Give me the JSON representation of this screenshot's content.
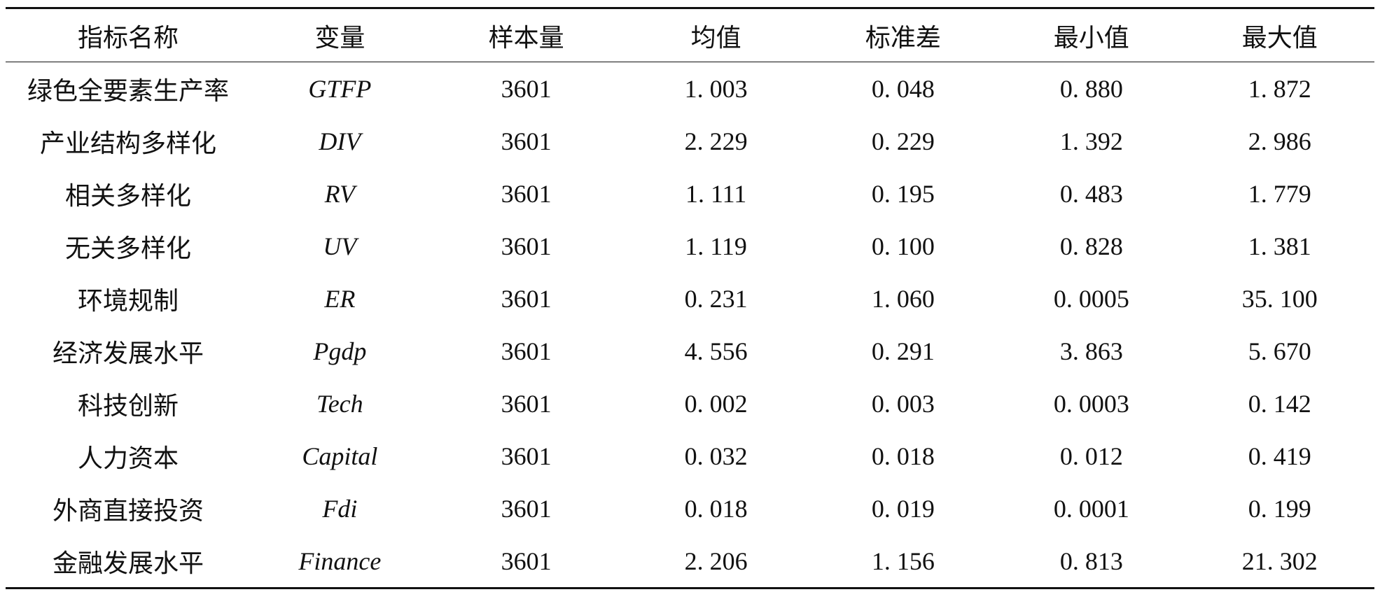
{
  "table": {
    "headers": [
      "指标名称",
      "变量",
      "样本量",
      "均值",
      "标准差",
      "最小值",
      "最大值"
    ],
    "rows": [
      [
        "绿色全要素生产率",
        "GTFP",
        "3601",
        "1. 003",
        "0. 048",
        "0. 880",
        "1. 872"
      ],
      [
        "产业结构多样化",
        "DIV",
        "3601",
        "2. 229",
        "0. 229",
        "1. 392",
        "2. 986"
      ],
      [
        "相关多样化",
        "RV",
        "3601",
        "1. 111",
        "0. 195",
        "0. 483",
        "1. 779"
      ],
      [
        "无关多样化",
        "UV",
        "3601",
        "1. 119",
        "0. 100",
        "0. 828",
        "1. 381"
      ],
      [
        "环境规制",
        "ER",
        "3601",
        "0. 231",
        "1. 060",
        "0. 0005",
        "35. 100"
      ],
      [
        "经济发展水平",
        "Pgdp",
        "3601",
        "4. 556",
        "0. 291",
        "3. 863",
        "5. 670"
      ],
      [
        "科技创新",
        "Tech",
        "3601",
        "0. 002",
        "0. 003",
        "0. 0003",
        "0. 142"
      ],
      [
        "人力资本",
        "Capital",
        "3601",
        "0. 032",
        "0. 018",
        "0. 012",
        "0. 419"
      ],
      [
        "外商直接投资",
        "Fdi",
        "3601",
        "0. 018",
        "0. 019",
        "0. 0001",
        "0. 199"
      ],
      [
        "金融发展水平",
        "Finance",
        "3601",
        "2. 206",
        "1. 156",
        "0. 813",
        "21. 302"
      ]
    ]
  }
}
